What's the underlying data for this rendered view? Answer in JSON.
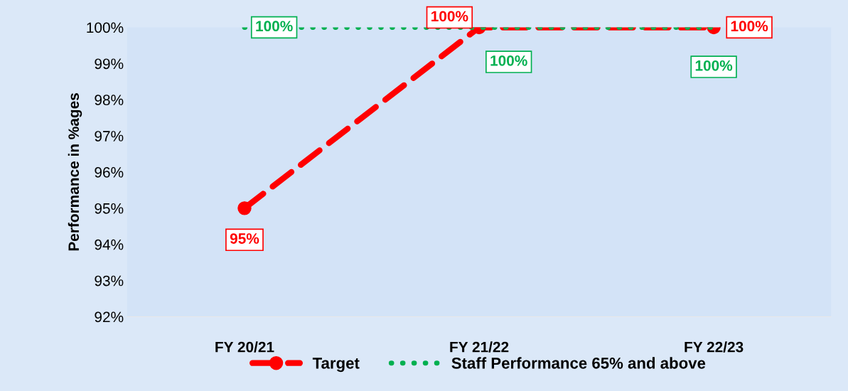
{
  "chart_data": {
    "type": "line",
    "ylabel": "Performance in %ages",
    "categories": [
      "FY 20/21",
      "FY 21/22",
      "FY 22/23"
    ],
    "series": [
      {
        "name": "Target",
        "color": "#ff0000",
        "values": [
          95,
          100,
          100
        ],
        "value_labels": [
          "95%",
          "100%",
          "100%"
        ],
        "marker": "circle",
        "line_style": "dashed"
      },
      {
        "name": "Staff Performance 65% and above",
        "color": "#00b050",
        "values": [
          100,
          100,
          100
        ],
        "value_labels": [
          "100%",
          "100%",
          "100%"
        ],
        "marker": "none",
        "line_style": "dotted"
      }
    ],
    "ylim": [
      92,
      100
    ],
    "yticks": [
      {
        "value": 92,
        "label": "92%"
      },
      {
        "value": 93,
        "label": "93%"
      },
      {
        "value": 94,
        "label": "94%"
      },
      {
        "value": 95,
        "label": "95%"
      },
      {
        "value": 96,
        "label": "96%"
      },
      {
        "value": 97,
        "label": "97%"
      },
      {
        "value": 98,
        "label": "98%"
      },
      {
        "value": 99,
        "label": "99%"
      },
      {
        "value": 100,
        "label": "100%"
      }
    ],
    "grid": false,
    "legend": "bottom"
  }
}
